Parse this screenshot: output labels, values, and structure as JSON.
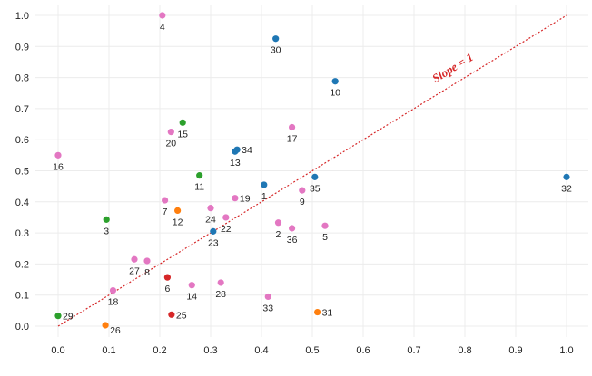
{
  "chart_data": {
    "type": "scatter",
    "title": "",
    "xlabel": "",
    "ylabel": "",
    "xlim": [
      -0.04,
      1.04
    ],
    "ylim": [
      -0.085,
      1.045
    ],
    "grid": true,
    "x_ticks": [
      "0.0",
      "0.1",
      "0.2",
      "0.3",
      "0.4",
      "0.5",
      "0.6",
      "0.7",
      "0.8",
      "0.9",
      "1.0"
    ],
    "y_ticks": [
      "0.0",
      "0.1",
      "0.2",
      "0.3",
      "0.4",
      "0.5",
      "0.6",
      "0.7",
      "0.8",
      "0.9",
      "1.0"
    ],
    "colors": {
      "blue": "#1f77b4",
      "green": "#2ca02c",
      "pink": "#e377c2",
      "orange": "#ff7f0e",
      "red": "#d62728",
      "line": "#d62728",
      "grid": "#ececec"
    },
    "reference_line": {
      "label": "Slope = 1",
      "slope": 1,
      "intercept": 0,
      "x": [
        0.0,
        1.0
      ]
    },
    "points": [
      {
        "id": "1",
        "x": 0.405,
        "y": 0.455,
        "color": "blue",
        "label_pos": "below"
      },
      {
        "id": "2",
        "x": 0.433,
        "y": 0.333,
        "color": "pink",
        "label_pos": "below"
      },
      {
        "id": "3",
        "x": 0.095,
        "y": 0.343,
        "color": "green",
        "label_pos": "below"
      },
      {
        "id": "4",
        "x": 0.205,
        "y": 1.0,
        "color": "pink",
        "label_pos": "below"
      },
      {
        "id": "5",
        "x": 0.525,
        "y": 0.323,
        "color": "pink",
        "label_pos": "below"
      },
      {
        "id": "6",
        "x": 0.215,
        "y": 0.157,
        "color": "red",
        "label_pos": "below"
      },
      {
        "id": "7",
        "x": 0.21,
        "y": 0.405,
        "color": "pink",
        "label_pos": "below"
      },
      {
        "id": "8",
        "x": 0.175,
        "y": 0.21,
        "color": "pink",
        "label_pos": "below"
      },
      {
        "id": "9",
        "x": 0.48,
        "y": 0.437,
        "color": "pink",
        "label_pos": "below"
      },
      {
        "id": "10",
        "x": 0.545,
        "y": 0.788,
        "color": "blue",
        "label_pos": "below"
      },
      {
        "id": "11",
        "x": 0.278,
        "y": 0.485,
        "color": "green",
        "label_pos": "below"
      },
      {
        "id": "12",
        "x": 0.235,
        "y": 0.372,
        "color": "orange",
        "label_pos": "below"
      },
      {
        "id": "13",
        "x": 0.348,
        "y": 0.562,
        "color": "blue",
        "label_pos": "below"
      },
      {
        "id": "14",
        "x": 0.263,
        "y": 0.132,
        "color": "pink",
        "label_pos": "below"
      },
      {
        "id": "15",
        "x": 0.245,
        "y": 0.655,
        "color": "green",
        "label_pos": "below"
      },
      {
        "id": "16",
        "x": 0.0,
        "y": 0.55,
        "color": "pink",
        "label_pos": "below"
      },
      {
        "id": "17",
        "x": 0.46,
        "y": 0.64,
        "color": "pink",
        "label_pos": "below"
      },
      {
        "id": "18",
        "x": 0.108,
        "y": 0.115,
        "color": "pink",
        "label_pos": "below"
      },
      {
        "id": "19",
        "x": 0.348,
        "y": 0.412,
        "color": "pink",
        "label_pos": "right"
      },
      {
        "id": "20",
        "x": 0.222,
        "y": 0.625,
        "color": "pink",
        "label_pos": "below"
      },
      {
        "id": "22",
        "x": 0.33,
        "y": 0.35,
        "color": "pink",
        "label_pos": "below"
      },
      {
        "id": "23",
        "x": 0.305,
        "y": 0.305,
        "color": "blue",
        "label_pos": "below"
      },
      {
        "id": "24",
        "x": 0.3,
        "y": 0.38,
        "color": "pink",
        "label_pos": "below"
      },
      {
        "id": "25",
        "x": 0.223,
        "y": 0.037,
        "color": "red",
        "label_pos": "right"
      },
      {
        "id": "26",
        "x": 0.093,
        "y": 0.003,
        "color": "orange",
        "label_pos": "right-below"
      },
      {
        "id": "27",
        "x": 0.15,
        "y": 0.215,
        "color": "pink",
        "label_pos": "below"
      },
      {
        "id": "28",
        "x": 0.32,
        "y": 0.14,
        "color": "pink",
        "label_pos": "below"
      },
      {
        "id": "29",
        "x": 0.0,
        "y": 0.033,
        "color": "green",
        "label_pos": "right"
      },
      {
        "id": "30",
        "x": 0.428,
        "y": 0.925,
        "color": "blue",
        "label_pos": "below"
      },
      {
        "id": "31",
        "x": 0.51,
        "y": 0.045,
        "color": "orange",
        "label_pos": "right"
      },
      {
        "id": "32",
        "x": 1.0,
        "y": 0.48,
        "color": "blue",
        "label_pos": "below"
      },
      {
        "id": "33",
        "x": 0.413,
        "y": 0.095,
        "color": "pink",
        "label_pos": "below"
      },
      {
        "id": "34",
        "x": 0.352,
        "y": 0.568,
        "color": "blue",
        "label_pos": "right"
      },
      {
        "id": "35",
        "x": 0.505,
        "y": 0.48,
        "color": "blue",
        "label_pos": "below"
      },
      {
        "id": "36",
        "x": 0.46,
        "y": 0.315,
        "color": "pink",
        "label_pos": "below"
      }
    ]
  }
}
